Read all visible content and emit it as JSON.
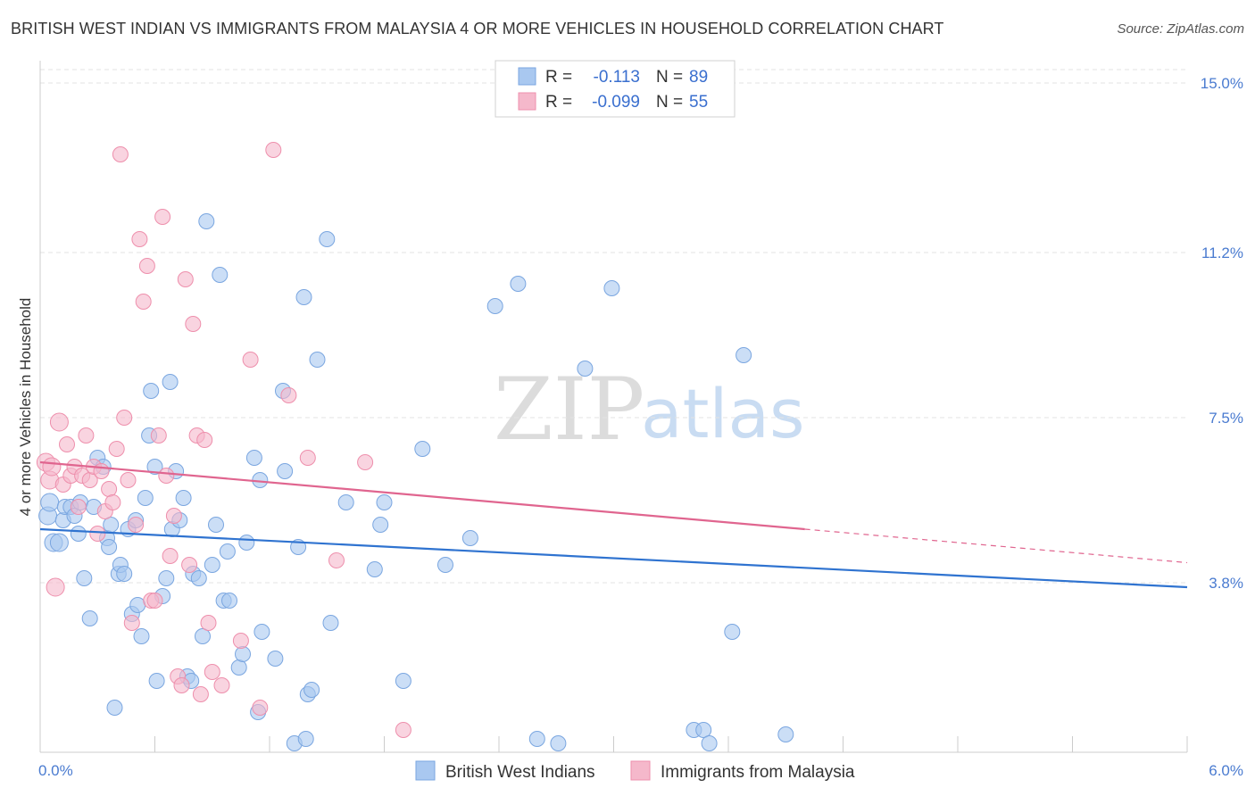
{
  "header": {
    "title": "BRITISH WEST INDIAN VS IMMIGRANTS FROM MALAYSIA 4 OR MORE VEHICLES IN HOUSEHOLD CORRELATION CHART",
    "source": "Source: ZipAtlas.com"
  },
  "watermark": {
    "zip": "ZIP",
    "atlas": "atlas"
  },
  "legend": {
    "rows": [
      {
        "r_label": "R =",
        "r_value": "-0.113",
        "n_label": "N =",
        "n_value": "89",
        "color": "#a9c8f0"
      },
      {
        "r_label": "R =",
        "r_value": "-0.099",
        "n_label": "N =",
        "n_value": "55",
        "color": "#f5b8cb"
      }
    ]
  },
  "chart_data": {
    "type": "scatter",
    "title": "BRITISH WEST INDIAN VS IMMIGRANTS FROM MALAYSIA 4 OR MORE VEHICLES IN HOUSEHOLD CORRELATION CHART",
    "xlabel": "",
    "ylabel": "4 or more Vehicles in Household",
    "xlim": [
      0,
      6
    ],
    "ylim": [
      0,
      15.5
    ],
    "x_tick_labels": [
      "0.0%",
      "6.0%"
    ],
    "y_ticks": [
      3.8,
      7.5,
      11.2,
      15.0
    ],
    "y_tick_labels": [
      "3.8%",
      "7.5%",
      "11.2%",
      "15.0%"
    ],
    "grid": true,
    "legend_position": "top-center",
    "series": [
      {
        "name": "British West Indians",
        "color": "#a9c8f0",
        "stroke": "#7aa6e0",
        "trend_color": "#2f73d0",
        "trend": {
          "x0": 0.0,
          "y0": 5.0,
          "x1": 6.0,
          "y1": 3.7
        },
        "points": [
          [
            0.04,
            5.3
          ],
          [
            0.07,
            4.7
          ],
          [
            0.05,
            5.6
          ],
          [
            0.12,
            5.2
          ],
          [
            0.1,
            4.7
          ],
          [
            0.13,
            5.5
          ],
          [
            0.16,
            5.5
          ],
          [
            0.18,
            5.3
          ],
          [
            0.2,
            4.9
          ],
          [
            0.21,
            5.6
          ],
          [
            0.23,
            3.9
          ],
          [
            0.26,
            3.0
          ],
          [
            0.28,
            5.5
          ],
          [
            0.3,
            6.6
          ],
          [
            0.33,
            6.4
          ],
          [
            0.35,
            4.8
          ],
          [
            0.36,
            4.6
          ],
          [
            0.37,
            5.1
          ],
          [
            0.39,
            1.0
          ],
          [
            0.41,
            4.0
          ],
          [
            0.42,
            4.2
          ],
          [
            0.44,
            4.0
          ],
          [
            0.46,
            5.0
          ],
          [
            0.48,
            3.1
          ],
          [
            0.5,
            5.2
          ],
          [
            0.51,
            3.3
          ],
          [
            0.53,
            2.6
          ],
          [
            0.55,
            5.7
          ],
          [
            0.57,
            7.1
          ],
          [
            0.58,
            8.1
          ],
          [
            0.6,
            6.4
          ],
          [
            0.61,
            1.6
          ],
          [
            0.64,
            3.5
          ],
          [
            0.66,
            3.9
          ],
          [
            0.68,
            8.3
          ],
          [
            0.69,
            5.0
          ],
          [
            0.71,
            6.3
          ],
          [
            0.73,
            5.2
          ],
          [
            0.75,
            5.7
          ],
          [
            0.77,
            1.7
          ],
          [
            0.79,
            1.6
          ],
          [
            0.8,
            4.0
          ],
          [
            0.83,
            3.9
          ],
          [
            0.85,
            2.6
          ],
          [
            0.87,
            11.9
          ],
          [
            0.9,
            4.2
          ],
          [
            0.92,
            5.1
          ],
          [
            0.94,
            10.7
          ],
          [
            0.96,
            3.4
          ],
          [
            0.98,
            4.5
          ],
          [
            0.99,
            3.4
          ],
          [
            1.04,
            1.9
          ],
          [
            1.06,
            2.2
          ],
          [
            1.08,
            4.7
          ],
          [
            1.12,
            6.6
          ],
          [
            1.14,
            0.9
          ],
          [
            1.15,
            6.1
          ],
          [
            1.16,
            2.7
          ],
          [
            1.23,
            2.1
          ],
          [
            1.27,
            8.1
          ],
          [
            1.28,
            6.3
          ],
          [
            1.33,
            0.2
          ],
          [
            1.35,
            4.6
          ],
          [
            1.38,
            10.2
          ],
          [
            1.39,
            0.3
          ],
          [
            1.4,
            1.3
          ],
          [
            1.42,
            1.4
          ],
          [
            1.45,
            8.8
          ],
          [
            1.5,
            11.5
          ],
          [
            1.52,
            2.9
          ],
          [
            1.6,
            5.6
          ],
          [
            1.75,
            4.1
          ],
          [
            1.78,
            5.1
          ],
          [
            1.8,
            5.6
          ],
          [
            1.9,
            1.6
          ],
          [
            2.0,
            6.8
          ],
          [
            2.12,
            4.2
          ],
          [
            2.25,
            4.8
          ],
          [
            2.38,
            10.0
          ],
          [
            2.5,
            10.5
          ],
          [
            2.6,
            0.3
          ],
          [
            2.71,
            0.2
          ],
          [
            2.85,
            8.6
          ],
          [
            2.99,
            10.4
          ],
          [
            3.42,
            0.5
          ],
          [
            3.47,
            0.5
          ],
          [
            3.5,
            0.2
          ],
          [
            3.62,
            2.7
          ],
          [
            3.68,
            8.9
          ],
          [
            3.9,
            0.4
          ]
        ]
      },
      {
        "name": "Immigrants from Malaysia",
        "color": "#f5b8cb",
        "stroke": "#ee8fac",
        "trend_color": "#e0658f",
        "trend": {
          "x0": 0.0,
          "y0": 6.5,
          "x1": 4.0,
          "y1": 5.0
        },
        "trend_dashed": {
          "x0": 4.0,
          "y0": 5.0,
          "x1": 6.0,
          "y1": 4.25
        },
        "points": [
          [
            0.03,
            6.5
          ],
          [
            0.05,
            6.1
          ],
          [
            0.06,
            6.4
          ],
          [
            0.08,
            3.7
          ],
          [
            0.1,
            7.4
          ],
          [
            0.12,
            6.0
          ],
          [
            0.14,
            6.9
          ],
          [
            0.16,
            6.2
          ],
          [
            0.18,
            6.4
          ],
          [
            0.2,
            5.5
          ],
          [
            0.22,
            6.2
          ],
          [
            0.24,
            7.1
          ],
          [
            0.26,
            6.1
          ],
          [
            0.28,
            6.4
          ],
          [
            0.3,
            4.9
          ],
          [
            0.32,
            6.3
          ],
          [
            0.34,
            5.4
          ],
          [
            0.36,
            5.9
          ],
          [
            0.38,
            5.6
          ],
          [
            0.4,
            6.8
          ],
          [
            0.42,
            13.4
          ],
          [
            0.44,
            7.5
          ],
          [
            0.46,
            6.1
          ],
          [
            0.48,
            2.9
          ],
          [
            0.5,
            5.1
          ],
          [
            0.52,
            11.5
          ],
          [
            0.54,
            10.1
          ],
          [
            0.56,
            10.9
          ],
          [
            0.58,
            3.4
          ],
          [
            0.6,
            3.4
          ],
          [
            0.62,
            7.1
          ],
          [
            0.64,
            12.0
          ],
          [
            0.66,
            6.2
          ],
          [
            0.68,
            4.4
          ],
          [
            0.7,
            5.3
          ],
          [
            0.72,
            1.7
          ],
          [
            0.74,
            1.5
          ],
          [
            0.76,
            10.6
          ],
          [
            0.78,
            4.2
          ],
          [
            0.8,
            9.6
          ],
          [
            0.82,
            7.1
          ],
          [
            0.84,
            1.3
          ],
          [
            0.86,
            7.0
          ],
          [
            0.88,
            2.9
          ],
          [
            0.9,
            1.8
          ],
          [
            0.95,
            1.5
          ],
          [
            1.05,
            2.5
          ],
          [
            1.1,
            8.8
          ],
          [
            1.15,
            1.0
          ],
          [
            1.22,
            13.5
          ],
          [
            1.3,
            8.0
          ],
          [
            1.4,
            6.6
          ],
          [
            1.55,
            4.3
          ],
          [
            1.7,
            6.5
          ],
          [
            1.9,
            0.5
          ]
        ]
      }
    ]
  },
  "bottom_legend": {
    "items": [
      {
        "label": "British West Indians",
        "color": "#a9c8f0"
      },
      {
        "label": "Immigrants from Malaysia",
        "color": "#f5b8cb"
      }
    ]
  }
}
